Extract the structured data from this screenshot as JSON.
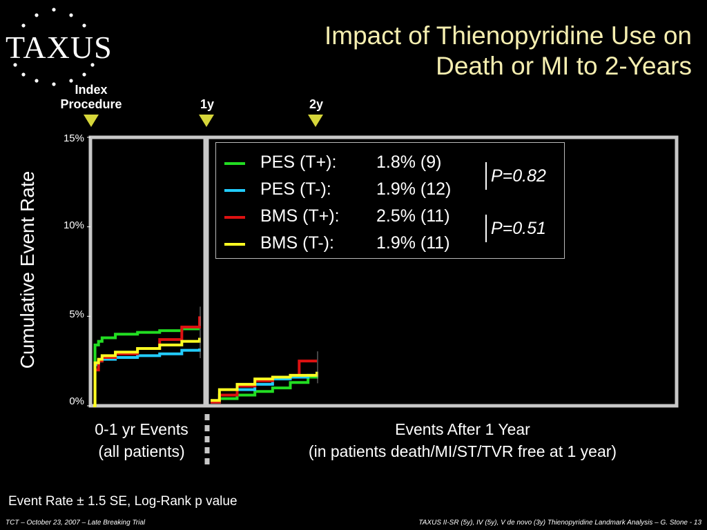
{
  "logo": {
    "text": "TAXUS"
  },
  "title": {
    "line1": "Impact of Thienopyridine Use on",
    "line2": "Death or MI to 2-Years"
  },
  "markers": [
    {
      "line1": "Index",
      "line2": "Procedure"
    },
    {
      "line1": "",
      "line2": "1y"
    },
    {
      "line1": "",
      "line2": "2y"
    }
  ],
  "colors": {
    "title": "#f5eeb0",
    "marker": "#d6d63a",
    "frame": "#c8c8c8",
    "pes_tp": "#22dd22",
    "pes_tm": "#22ccff",
    "bms_tp": "#dd1111",
    "bms_tm": "#ffff22"
  },
  "legend": {
    "rows": [
      {
        "name": "PES (T+):",
        "value": "1.8% (9)",
        "color": "#22dd22"
      },
      {
        "name": "PES (T-):",
        "value": "1.9% (12)",
        "color": "#22ccff"
      },
      {
        "name": "BMS (T+):",
        "value": "2.5% (11)",
        "color": "#dd1111"
      },
      {
        "name": "BMS (T-):",
        "value": "1.9% (11)",
        "color": "#ffff22"
      }
    ],
    "p1": "P=0.82",
    "p2": "P=0.51"
  },
  "bottom": {
    "left1": "0-1 yr Events",
    "left2": "(all patients)",
    "right1": "Events After 1 Year",
    "right2": "(in patients death/MI/ST/TVR free at 1 year)"
  },
  "footnote": "Event Rate ± 1.5 SE, Log-Rank p value",
  "footer": {
    "left": "TCT – October 23, 2007 – Late Breaking Trial",
    "right": "TAXUS II-SR (5y), IV (5y), V de novo (3y) Thienopyridine Landmark Analysis – G. Stone - 13"
  },
  "chart_data": {
    "type": "line",
    "ylabel": "Cumulative Event Rate",
    "yticks": [
      "0%",
      "5%",
      "10%",
      "15%"
    ],
    "ylim": [
      0,
      15
    ],
    "segments": [
      {
        "label": "0-1 yr Events",
        "x_range": [
          0,
          12
        ],
        "series": [
          {
            "name": "PES (T+)",
            "color": "#22dd22",
            "x": [
              0,
              0.2,
              0.6,
              1,
              2.5,
              5,
              7.5,
              10,
              12
            ],
            "y": [
              0,
              3.4,
              3.6,
              3.8,
              4.0,
              4.1,
              4.2,
              4.3,
              4.3
            ]
          },
          {
            "name": "PES (T-)",
            "color": "#22ccff",
            "x": [
              0,
              0.2,
              0.6,
              1,
              2.5,
              5,
              7.5,
              10,
              12
            ],
            "y": [
              0,
              2.3,
              2.5,
              2.6,
              2.7,
              2.8,
              2.9,
              3.1,
              3.2
            ]
          },
          {
            "name": "BMS (T+)",
            "color": "#dd1111",
            "x": [
              0,
              0.2,
              0.6,
              1,
              2.5,
              5,
              7.5,
              10,
              12
            ],
            "y": [
              0,
              2.0,
              2.5,
              2.7,
              2.9,
              3.2,
              3.7,
              4.4,
              5.0
            ]
          },
          {
            "name": "BMS (T-)",
            "color": "#ffff22",
            "x": [
              0,
              0.2,
              0.6,
              1,
              2.5,
              5,
              7.5,
              10,
              12
            ],
            "y": [
              0,
              2.4,
              2.6,
              2.8,
              3.0,
              3.2,
              3.4,
              3.6,
              3.8
            ]
          }
        ]
      },
      {
        "label": "Events After 1 Year",
        "x_range": [
          12,
          24
        ],
        "series": [
          {
            "name": "PES (T+)",
            "color": "#22dd22",
            "x": [
              12,
              13,
              15,
              17,
              19,
              21,
              23,
              24
            ],
            "y": [
              0.2,
              0.4,
              0.6,
              0.8,
              1.0,
              1.3,
              1.6,
              1.8
            ]
          },
          {
            "name": "PES (T-)",
            "color": "#22ccff",
            "x": [
              12,
              13,
              15,
              17,
              19,
              21,
              23,
              24
            ],
            "y": [
              0.2,
              0.6,
              0.9,
              1.2,
              1.5,
              1.6,
              1.7,
              1.9
            ]
          },
          {
            "name": "BMS (T+)",
            "color": "#dd1111",
            "x": [
              12,
              13,
              15,
              17,
              19,
              21,
              22,
              24
            ],
            "y": [
              0.2,
              0.6,
              1.1,
              1.4,
              1.6,
              1.7,
              2.5,
              2.5
            ]
          },
          {
            "name": "BMS (T-)",
            "color": "#ffff22",
            "x": [
              12,
              13,
              15,
              17,
              19,
              21,
              23,
              24
            ],
            "y": [
              0.3,
              0.9,
              1.2,
              1.5,
              1.6,
              1.7,
              1.7,
              1.9
            ]
          }
        ]
      }
    ]
  }
}
